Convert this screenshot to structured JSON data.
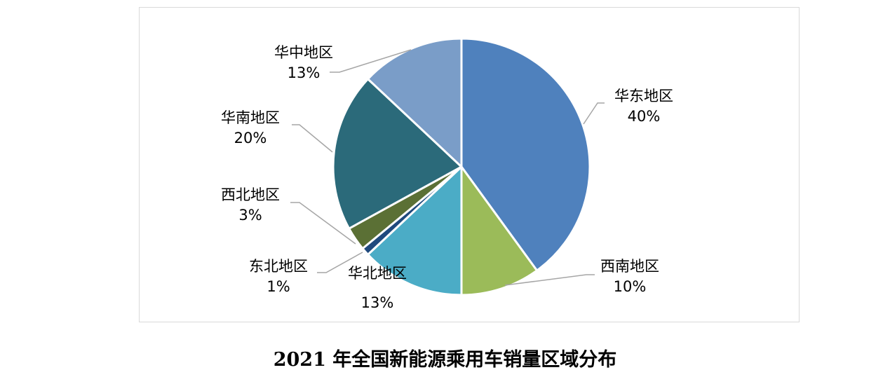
{
  "chart_data": {
    "type": "pie",
    "caption": "2021 年全国新能源乘用车销量区域分布",
    "slices": [
      {
        "label": "华东地区",
        "percent_text": "40%",
        "value": 40,
        "color": "#4F81BD"
      },
      {
        "label": "西南地区",
        "percent_text": "10%",
        "value": 10,
        "color": "#9BBB59"
      },
      {
        "label": "华北地区",
        "percent_text": "13%",
        "value": 13,
        "color": "#4BACC6"
      },
      {
        "label": "东北地区",
        "percent_text": "1%",
        "value": 1,
        "color": "#1F497D"
      },
      {
        "label": "西北地区",
        "percent_text": "3%",
        "value": 3,
        "color": "#5B7035"
      },
      {
        "label": "华南地区",
        "percent_text": "20%",
        "value": 20,
        "color": "#2B6A7A"
      },
      {
        "label": "华中地区",
        "percent_text": "13%",
        "value": 13,
        "color": "#7A9DC8"
      }
    ]
  }
}
